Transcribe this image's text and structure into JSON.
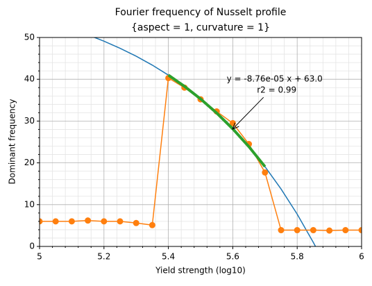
{
  "chart_data": {
    "type": "line",
    "title": [
      "Fourier frequency of Nusselt profile",
      "{aspect = 1, curvature = 1}"
    ],
    "x_label": "Yield strength (log10)",
    "y_label": "Dominant frequency",
    "xlim": [
      5,
      6
    ],
    "ylim": [
      0,
      50
    ],
    "xticks": [
      5,
      5.2,
      5.4,
      5.6,
      5.8,
      6
    ],
    "yticks": [
      0,
      10,
      20,
      30,
      40,
      50
    ],
    "xminor": [
      5.04,
      5.08,
      5.12,
      5.16,
      5.24,
      5.28,
      5.32,
      5.36,
      5.44,
      5.48,
      5.52,
      5.56,
      5.64,
      5.68,
      5.72,
      5.76,
      5.84,
      5.88,
      5.92,
      5.96
    ],
    "yminor": [
      2,
      4,
      6,
      8,
      12,
      14,
      16,
      18,
      22,
      24,
      26,
      28,
      32,
      34,
      36,
      38,
      42,
      44,
      46,
      48
    ],
    "grid": true,
    "series": [
      {
        "color": "#1f77b4",
        "linewidth": 1.5,
        "marker": false,
        "x": [
          5.15,
          5.2,
          5.25,
          5.3,
          5.35,
          5.4,
          5.45,
          5.5,
          5.55,
          5.6,
          5.65,
          5.7,
          5.75,
          5.8,
          5.85,
          5.86
        ],
        "values": [
          50.63,
          49.12,
          47.42,
          45.52,
          43.39,
          41.0,
          38.31,
          35.3,
          31.92,
          28.13,
          23.87,
          19.1,
          13.74,
          7.73,
          0.98,
          -0.46
        ]
      },
      {
        "color": "#ff7f0e",
        "linewidth": 1.5,
        "marker": true,
        "x": [
          5.0,
          5.05,
          5.1,
          5.15,
          5.2,
          5.25,
          5.3,
          5.35,
          5.4,
          5.45,
          5.5,
          5.55,
          5.6,
          5.65,
          5.7,
          5.75,
          5.8,
          5.85,
          5.9,
          5.95,
          6.0
        ],
        "values": [
          6.0,
          6.0,
          6.0,
          6.2,
          6.0,
          6.0,
          5.6,
          5.1,
          40.3,
          38.0,
          35.2,
          32.3,
          29.5,
          24.5,
          17.7,
          3.9,
          3.9,
          3.9,
          3.8,
          3.9,
          3.9
        ]
      },
      {
        "color": "#2ca02c",
        "linewidth": 4,
        "marker": false,
        "x": [
          5.4,
          5.45,
          5.5,
          5.55,
          5.6,
          5.65,
          5.7
        ],
        "values": [
          41.0,
          38.31,
          35.3,
          31.92,
          28.13,
          23.87,
          19.1
        ]
      }
    ],
    "annotation": {
      "lines": [
        "y = -8.76e-05 x + 63.0",
        "r2 = 0.99"
      ],
      "xy": [
        5.6,
        28.13
      ],
      "xytext": [
        5.73,
        40
      ]
    }
  }
}
